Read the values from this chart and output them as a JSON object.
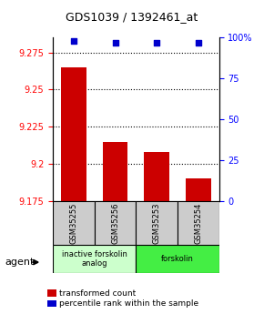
{
  "title": "GDS1039 / 1392461_at",
  "samples": [
    "GSM35255",
    "GSM35256",
    "GSM35253",
    "GSM35254"
  ],
  "bar_values": [
    9.265,
    9.215,
    9.208,
    9.19
  ],
  "percentile_values": [
    98,
    97,
    97,
    97
  ],
  "ymin": 9.175,
  "ymax": 9.285,
  "yticks": [
    9.175,
    9.2,
    9.225,
    9.25,
    9.275
  ],
  "right_yticks": [
    0,
    25,
    50,
    75,
    100
  ],
  "bar_color": "#cc0000",
  "dot_color": "#0000cc",
  "bar_width": 0.6,
  "groups": [
    {
      "label": "inactive forskolin\nanalog",
      "samples": [
        0,
        1
      ],
      "color": "#ccffcc"
    },
    {
      "label": "forskolin",
      "samples": [
        2,
        3
      ],
      "color": "#44ee44"
    }
  ],
  "legend_bar_label": "transformed count",
  "legend_dot_label": "percentile rank within the sample",
  "agent_label": "agent",
  "background_color": "#ffffff",
  "plot_bg_color": "#ffffff",
  "label_box_color": "#cccccc"
}
